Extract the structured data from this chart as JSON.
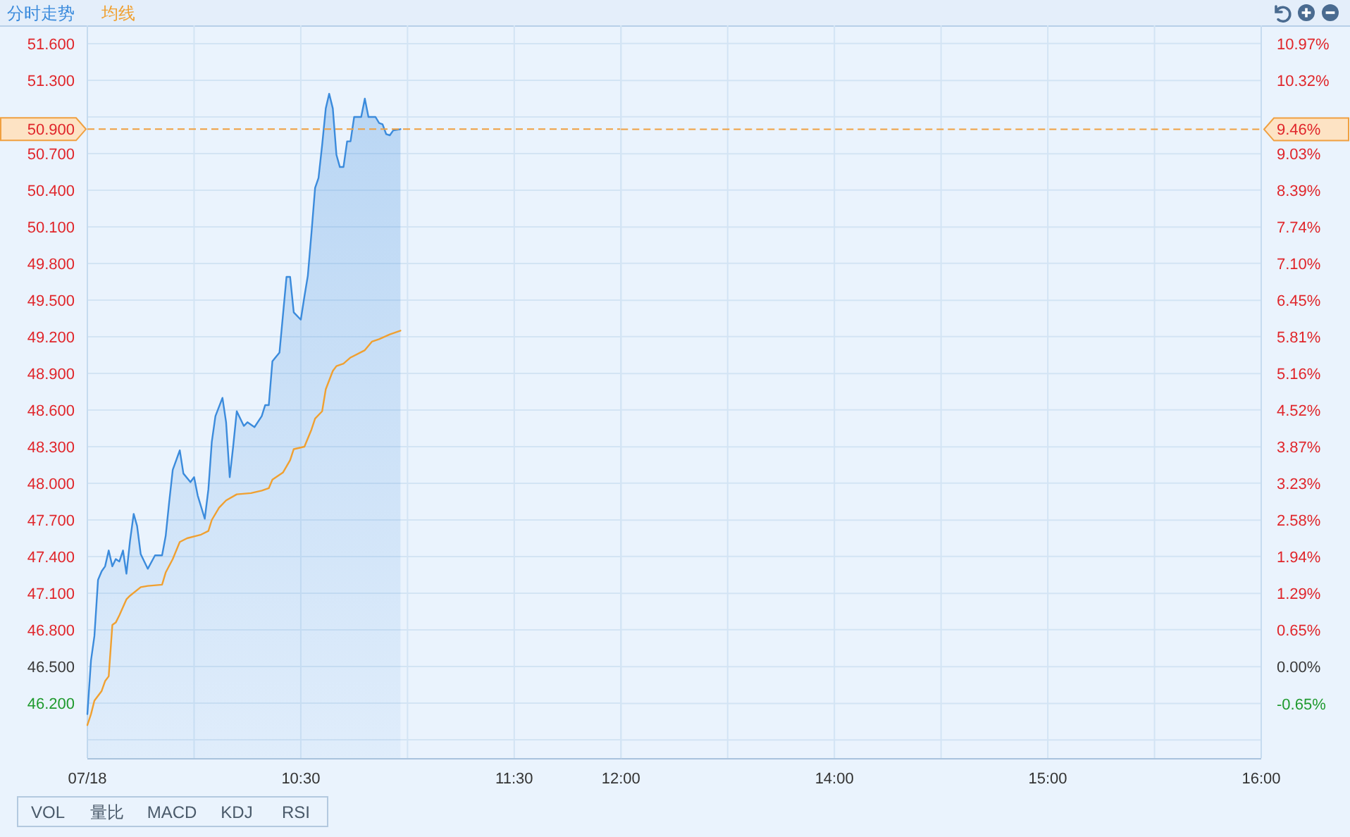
{
  "chart_data": [
    {
      "type": "line",
      "legend": "top left",
      "grid": true,
      "xlim": [
        9.5,
        12
      ],
      "xticks": [
        {
          "value": 9.5,
          "label": "07/18"
        },
        {
          "value": 10,
          "label": null
        },
        {
          "value": 10.5,
          "label": "10:30"
        },
        {
          "value": 11,
          "label": null
        },
        {
          "value": 11.5,
          "label": "11:30"
        },
        {
          "value": 12,
          "label": "12:00"
        }
      ],
      "ylim": [
        45.75,
        51.75
      ],
      "yticks": [
        {
          "value": 45.9,
          "label": null
        },
        {
          "value": 46.2,
          "label": "46.200"
        },
        {
          "value": 46.5,
          "label": "46.500"
        },
        {
          "value": 46.8,
          "label": "46.800"
        },
        {
          "value": 47.1,
          "label": "47.100"
        },
        {
          "value": 47.4,
          "label": "47.400"
        },
        {
          "value": 47.7,
          "label": "47.700"
        },
        {
          "value": 48.0,
          "label": "48.000"
        },
        {
          "value": 48.3,
          "label": "48.300"
        },
        {
          "value": 48.6,
          "label": "48.600"
        },
        {
          "value": 48.9,
          "label": "48.900"
        },
        {
          "value": 49.2,
          "label": "49.200"
        },
        {
          "value": 49.5,
          "label": "49.500"
        },
        {
          "value": 49.8,
          "label": "49.800"
        },
        {
          "value": 50.1,
          "label": "50.100"
        },
        {
          "value": 50.4,
          "label": "50.400"
        },
        {
          "value": 50.7,
          "label": "50.700"
        },
        {
          "value": 51.0,
          "label": null
        },
        {
          "value": 51.3,
          "label": "51.300"
        },
        {
          "value": 51.6,
          "label": "51.600"
        }
      ],
      "series": [
        {
          "name": "分时走势",
          "type": "area",
          "color": "#3b8bdc",
          "x": [
            9.5,
            9.517,
            9.533,
            9.55,
            9.567,
            9.583,
            9.6,
            9.617,
            9.633,
            9.65,
            9.667,
            9.683,
            9.7,
            9.717,
            9.733,
            9.75,
            9.783,
            9.817,
            9.85,
            9.867,
            9.883,
            9.9,
            9.933,
            9.95,
            9.983,
            10.0,
            10.017,
            10.05,
            10.067,
            10.083,
            10.1,
            10.133,
            10.15,
            10.167,
            10.183,
            10.2,
            10.233,
            10.25,
            10.283,
            10.317,
            10.333,
            10.35,
            10.367,
            10.4,
            10.433,
            10.45,
            10.467,
            10.5,
            10.517,
            10.533,
            10.55,
            10.567,
            10.583,
            10.6,
            10.617,
            10.633,
            10.65,
            10.667,
            10.683,
            10.7,
            10.717,
            10.733,
            10.75,
            10.783,
            10.8,
            10.817,
            10.85,
            10.867,
            10.883,
            10.9,
            10.917,
            10.933,
            10.967
          ],
          "values": [
            46.11,
            46.55,
            46.75,
            47.21,
            47.28,
            47.32,
            47.45,
            47.32,
            47.38,
            47.36,
            47.45,
            47.26,
            47.53,
            47.75,
            47.65,
            47.42,
            47.3,
            47.41,
            47.41,
            47.57,
            47.84,
            48.11,
            48.27,
            48.08,
            48.01,
            48.05,
            47.9,
            47.71,
            47.95,
            48.34,
            48.55,
            48.7,
            48.5,
            48.05,
            48.3,
            48.59,
            48.47,
            48.5,
            48.46,
            48.55,
            48.64,
            48.64,
            49.0,
            49.07,
            49.69,
            49.69,
            49.4,
            49.34,
            49.53,
            49.7,
            50.05,
            50.42,
            50.5,
            50.77,
            51.07,
            51.19,
            51.07,
            50.69,
            50.59,
            50.59,
            50.8,
            50.8,
            51.0,
            51.0,
            51.15,
            51.0,
            51.0,
            50.95,
            50.94,
            50.86,
            50.85,
            50.89,
            50.9
          ]
        },
        {
          "name": "均线",
          "color": "#f0a030",
          "x": [
            9.5,
            9.517,
            9.533,
            9.567,
            9.583,
            9.6,
            9.617,
            9.633,
            9.65,
            9.683,
            9.7,
            9.75,
            9.783,
            9.85,
            9.867,
            9.9,
            9.933,
            9.967,
            10.033,
            10.067,
            10.083,
            10.117,
            10.15,
            10.2,
            10.267,
            10.317,
            10.35,
            10.367,
            10.417,
            10.45,
            10.467,
            10.517,
            10.55,
            10.567,
            10.6,
            10.617,
            10.65,
            10.667,
            10.7,
            10.733,
            10.8,
            10.833,
            10.867,
            10.917,
            10.967
          ],
          "values": [
            46.02,
            46.11,
            46.22,
            46.3,
            46.38,
            46.42,
            46.84,
            46.86,
            46.92,
            47.05,
            47.08,
            47.15,
            47.16,
            47.17,
            47.27,
            47.38,
            47.52,
            47.55,
            47.58,
            47.61,
            47.7,
            47.8,
            47.86,
            47.91,
            47.92,
            47.94,
            47.96,
            48.03,
            48.09,
            48.19,
            48.28,
            48.3,
            48.44,
            48.53,
            48.59,
            48.77,
            48.92,
            48.96,
            48.98,
            49.03,
            49.09,
            49.16,
            49.18,
            49.22,
            49.25
          ]
        }
      ],
      "ref_lines": [
        {
          "axis": "y",
          "value": 50.9,
          "label": "50.900",
          "color": "#f0a040",
          "line_style": "dashed"
        }
      ],
      "annotations": [
        "VOL",
        "量比",
        "MACD",
        "KDJ",
        "RSI"
      ]
    },
    {
      "type": "line",
      "grid": true,
      "xlim": [
        13,
        16
      ],
      "xticks": [
        {
          "value": 13,
          "label": null
        },
        {
          "value": 13.5,
          "label": null
        },
        {
          "value": 14,
          "label": "14:00"
        },
        {
          "value": 14.5,
          "label": null
        },
        {
          "value": 15,
          "label": "15:00"
        },
        {
          "value": 15.5,
          "label": null
        },
        {
          "value": 16,
          "label": "16:00"
        }
      ],
      "y2lim": [
        -1.61,
        11.29
      ],
      "y2ticks": [
        {
          "value": -1.29,
          "label": null
        },
        {
          "value": -0.65,
          "label": "-0.65%"
        },
        {
          "value": 0,
          "label": "0.00%"
        },
        {
          "value": 0.65,
          "label": "0.65%"
        },
        {
          "value": 1.29,
          "label": "1.29%"
        },
        {
          "value": 1.94,
          "label": "1.94%"
        },
        {
          "value": 2.58,
          "label": "2.58%"
        },
        {
          "value": 3.23,
          "label": "3.23%"
        },
        {
          "value": 3.87,
          "label": "3.87%"
        },
        {
          "value": 4.52,
          "label": "4.52%"
        },
        {
          "value": 5.16,
          "label": "5.16%"
        },
        {
          "value": 5.81,
          "label": "5.81%"
        },
        {
          "value": 6.45,
          "label": "6.45%"
        },
        {
          "value": 7.1,
          "label": "7.10%"
        },
        {
          "value": 7.74,
          "label": "7.74%"
        },
        {
          "value": 8.39,
          "label": "8.39%"
        },
        {
          "value": 9.03,
          "label": "9.03%"
        },
        {
          "value": 9.68,
          "label": null
        },
        {
          "value": 10.32,
          "label": "10.32%"
        },
        {
          "value": 10.97,
          "label": "10.97%"
        }
      ],
      "ref_lines": [
        {
          "axis": "y2",
          "value": 9.46,
          "label": "9.46%",
          "color": "#f0a040",
          "line_style": "dashed"
        }
      ]
    }
  ]
}
